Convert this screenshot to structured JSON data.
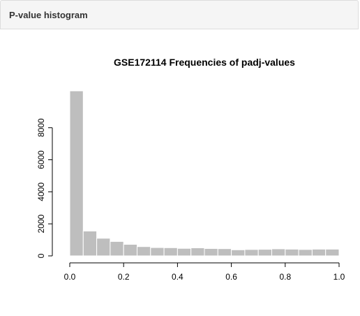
{
  "panel": {
    "title": "P-value histogram"
  },
  "chart_data": {
    "type": "bar",
    "title": "GSE172114 Frequencies of padj-values",
    "xlabel": "",
    "ylabel": "",
    "bin_edges": [
      0.0,
      0.05,
      0.1,
      0.15,
      0.2,
      0.25,
      0.3,
      0.35,
      0.4,
      0.45,
      0.5,
      0.55,
      0.6,
      0.65,
      0.7,
      0.75,
      0.8,
      0.85,
      0.9,
      0.95,
      1.0
    ],
    "values": [
      10300,
      1550,
      1100,
      900,
      720,
      580,
      520,
      510,
      470,
      500,
      460,
      450,
      380,
      400,
      410,
      440,
      420,
      400,
      420,
      420
    ],
    "xlim": [
      0,
      1
    ],
    "ylim": [
      0,
      10300
    ],
    "xticks": [
      0.0,
      0.2,
      0.4,
      0.6,
      0.8,
      1.0
    ],
    "xtick_labels": [
      "0.0",
      "0.2",
      "0.4",
      "0.6",
      "0.8",
      "1.0"
    ],
    "yticks": [
      0,
      2000,
      4000,
      6000,
      8000
    ],
    "ytick_labels": [
      "0",
      "2000",
      "4000",
      "6000",
      "8000"
    ],
    "bar_color": "#bebebe",
    "bar_border_color": "#ffffff",
    "grid": false,
    "legend": "none"
  }
}
